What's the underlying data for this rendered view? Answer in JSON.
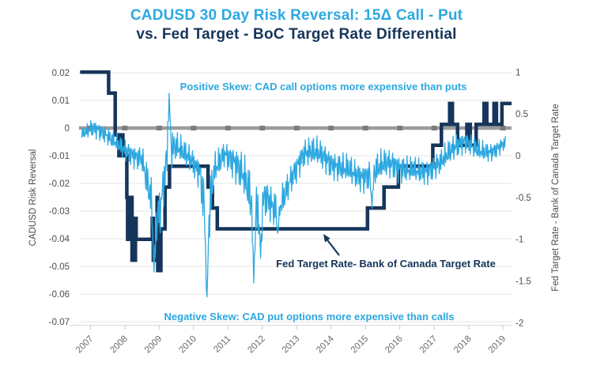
{
  "title": {
    "line1": "CADUSD 30 Day Risk Reversal: 15Δ Call - Put",
    "line2": "vs. Fed Target - BoC Target Rate Differential"
  },
  "colors": {
    "light_blue": "#2CA8E0",
    "navy": "#16355A",
    "zero_line": "#9B9B9B",
    "zero_line_tick": "#7d7d7d",
    "grid": "#e5e5e5",
    "axis_text": "#4d4d4d",
    "year_text": "#6b6b6b"
  },
  "annotations": {
    "positive_skew": "Positive Skew: CAD call options more expensive than puts",
    "negative_skew": "Negative Skew: CAD put options more expensive than calls",
    "fed_line_label": "Fed Target Rate- Bank of Canada Target Rate"
  },
  "chart_data": {
    "type": "line",
    "title": "CADUSD 30 Day Risk Reversal: 15Δ Call - Put vs. Fed Target - BoC Target Rate Differential",
    "grid": "horizontal-only",
    "x_axis": {
      "range": [
        2006.67,
        2019.25
      ],
      "ticks": [
        2007,
        2008,
        2009,
        2010,
        2011,
        2012,
        2013,
        2014,
        2015,
        2016,
        2017,
        2018,
        2019
      ]
    },
    "left_axis": {
      "label": "CADUSD Risk Reversal",
      "range": [
        -0.07,
        0.02
      ],
      "ticks": [
        {
          "label": "0.02",
          "value": 0.02
        },
        {
          "label": "0.01",
          "value": 0.01
        },
        {
          "label": "0",
          "value": 0
        },
        {
          "label": "-0.01",
          "value": -0.01
        },
        {
          "label": "-0.02",
          "value": -0.02
        },
        {
          "label": "-0.03",
          "value": -0.03
        },
        {
          "label": "-0.04",
          "value": -0.04
        },
        {
          "label": "-0.05",
          "value": -0.05
        },
        {
          "label": "-0.06",
          "value": -0.06
        },
        {
          "label": "-0.07",
          "value": -0.07
        }
      ]
    },
    "right_axis": {
      "label": "Fed Target Rate - Bank of Canada Target Rate",
      "range": [
        -2,
        1
      ],
      "ticks": [
        {
          "label": "1",
          "value": 1
        },
        {
          "label": "0.5",
          "value": 0.5
        },
        {
          "label": "0",
          "value": 0
        },
        {
          "label": "-0.5",
          "value": -0.5
        },
        {
          "label": "-1",
          "value": -1
        },
        {
          "label": "-1.5",
          "value": -1.5
        },
        {
          "label": "-2",
          "value": -2
        }
      ]
    },
    "series": [
      {
        "name": "CADUSD 30 Day Risk Reversal (15-delta call minus put)",
        "axis": "left",
        "style": "noisy-line",
        "color": "#2CA8E0",
        "envelope_t_center_amp": [
          [
            2006.75,
            -0.002,
            0.003
          ],
          [
            2007.05,
            -0.001,
            0.005
          ],
          [
            2007.6,
            -0.005,
            0.005
          ],
          [
            2008.0,
            -0.007,
            0.006
          ],
          [
            2008.5,
            -0.009,
            0.007
          ],
          [
            2008.7,
            -0.02,
            0.012
          ],
          [
            2008.9,
            -0.036,
            0.014
          ],
          [
            2009.05,
            -0.03,
            0.013
          ],
          [
            2009.25,
            -0.012,
            0.013
          ],
          [
            2009.5,
            -0.009,
            0.008
          ],
          [
            2009.9,
            -0.011,
            0.007
          ],
          [
            2010.2,
            -0.014,
            0.009
          ],
          [
            2010.38,
            -0.03,
            0.026
          ],
          [
            2010.6,
            -0.013,
            0.009
          ],
          [
            2010.9,
            -0.009,
            0.007
          ],
          [
            2011.2,
            -0.015,
            0.01
          ],
          [
            2011.5,
            -0.022,
            0.012
          ],
          [
            2011.78,
            -0.034,
            0.017
          ],
          [
            2012.1,
            -0.023,
            0.011
          ],
          [
            2012.45,
            -0.027,
            0.01
          ],
          [
            2012.8,
            -0.018,
            0.008
          ],
          [
            2013.2,
            -0.011,
            0.008
          ],
          [
            2013.6,
            -0.011,
            0.008
          ],
          [
            2014.0,
            -0.013,
            0.008
          ],
          [
            2014.5,
            -0.012,
            0.008
          ],
          [
            2014.9,
            -0.017,
            0.008
          ],
          [
            2015.2,
            -0.018,
            0.009
          ],
          [
            2015.6,
            -0.015,
            0.008
          ],
          [
            2016.0,
            -0.015,
            0.008
          ],
          [
            2016.4,
            -0.013,
            0.007
          ],
          [
            2016.8,
            -0.014,
            0.007
          ],
          [
            2017.2,
            -0.013,
            0.007
          ],
          [
            2017.6,
            -0.009,
            0.007
          ],
          [
            2017.9,
            -0.006,
            0.006
          ],
          [
            2018.3,
            -0.007,
            0.006
          ],
          [
            2018.7,
            -0.007,
            0.005
          ],
          [
            2019.05,
            -0.005,
            0.004
          ]
        ],
        "notable_extremes_t_value": [
          [
            2008.85,
            -0.052
          ],
          [
            2009.28,
            0.0125
          ],
          [
            2010.38,
            -0.061
          ],
          [
            2011.75,
            -0.056
          ],
          [
            2011.95,
            -0.047
          ],
          [
            2012.45,
            -0.038
          ],
          [
            2015.18,
            -0.029
          ]
        ]
      },
      {
        "name": "Fed Target Rate minus Bank of Canada Target Rate",
        "axis": "right",
        "style": "step",
        "color": "#16355A",
        "points_t_value": [
          [
            2006.7,
            1.0
          ],
          [
            2007.53,
            0.75
          ],
          [
            2007.72,
            0.25
          ],
          [
            2007.83,
            0.0
          ],
          [
            2007.925,
            0.25
          ],
          [
            2007.945,
            0.0
          ],
          [
            2008.06,
            -0.5
          ],
          [
            2008.082,
            -1.0
          ],
          [
            2008.17,
            -0.5
          ],
          [
            2008.21,
            -1.25
          ],
          [
            2008.31,
            -0.75
          ],
          [
            2008.33,
            -1.0
          ],
          [
            2008.8,
            -0.75
          ],
          [
            2008.83,
            -1.25
          ],
          [
            2008.94,
            -0.5
          ],
          [
            2008.958,
            -1.375
          ],
          [
            2009.05,
            -0.875
          ],
          [
            2009.17,
            -0.375
          ],
          [
            2009.3,
            -0.125
          ],
          [
            2010.42,
            -0.375
          ],
          [
            2010.55,
            -0.625
          ],
          [
            2010.69,
            -0.875
          ],
          [
            2015.06,
            -0.625
          ],
          [
            2015.54,
            -0.375
          ],
          [
            2015.96,
            -0.125
          ],
          [
            2016.96,
            0.125
          ],
          [
            2017.21,
            0.375
          ],
          [
            2017.45,
            0.625
          ],
          [
            2017.53,
            0.375
          ],
          [
            2017.68,
            0.125
          ],
          [
            2017.95,
            0.375
          ],
          [
            2018.05,
            0.125
          ],
          [
            2018.22,
            0.375
          ],
          [
            2018.45,
            0.625
          ],
          [
            2018.53,
            0.375
          ],
          [
            2018.74,
            0.625
          ],
          [
            2018.81,
            0.375
          ],
          [
            2018.97,
            0.625
          ],
          [
            2019.25,
            0.625
          ]
        ]
      }
    ]
  }
}
